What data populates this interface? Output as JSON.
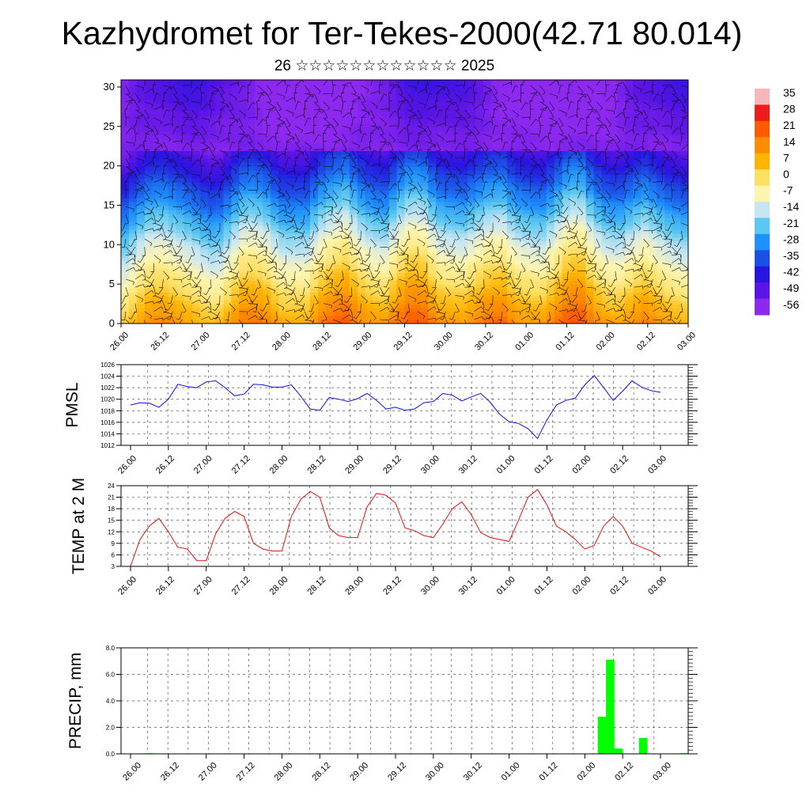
{
  "title": "Kazhydromet for Ter-Tekes-2000(42.71 80.014)",
  "subtitle": "26 ☆☆☆☆☆☆☆☆☆☆☆☆ 2025",
  "time_labels": [
    "26.00",
    "26.12",
    "27.00",
    "27.12",
    "28.00",
    "28.12",
    "29.00",
    "29.12",
    "30.00",
    "30.12",
    "01.00",
    "01.12",
    "02.00",
    "02.12",
    "03.00"
  ],
  "chart_data": [
    {
      "type": "heatmap",
      "title": "",
      "ylim": [
        0,
        30
      ],
      "yticks": [
        "0",
        "5",
        "10",
        "15",
        "20",
        "25",
        "30"
      ],
      "colorbar": {
        "labels": [
          "35",
          "28",
          "21",
          "14",
          "7",
          "0",
          "-7",
          "-14",
          "-21",
          "-28",
          "-35",
          "-42",
          "-49",
          "-56"
        ],
        "colors": [
          "#f4b8b8",
          "#ee1c1c",
          "#ff5a00",
          "#ff8c00",
          "#ffb400",
          "#ffe066",
          "#fff5b0",
          "#c8e6f2",
          "#5ac8f0",
          "#1e90ff",
          "#1c4fe6",
          "#2814e0",
          "#5a14e6",
          "#8c28f0"
        ],
        "range": [
          -60,
          38
        ]
      },
      "surface_temperature": [
        3,
        8,
        14,
        15,
        12,
        8,
        5,
        4,
        10,
        16,
        17,
        15,
        9,
        7,
        7,
        16,
        21,
        22,
        14,
        11,
        11,
        18,
        22,
        21,
        14,
        12,
        10,
        14,
        19,
        20,
        12,
        10,
        10,
        16,
        22,
        23,
        15,
        11,
        9,
        12,
        16,
        13,
        9,
        6
      ]
    },
    {
      "type": "line",
      "ylabel": "PMSL",
      "ylim": [
        1012,
        1026
      ],
      "yticks": [
        "1012",
        "1014",
        "1016",
        "1018",
        "1020",
        "1022",
        "1024",
        "1026"
      ],
      "color": "#1010e0",
      "series": [
        {
          "values": [
            1019,
            1019.4,
            1019.3,
            1018.6,
            1020,
            1022.6,
            1022.2,
            1022,
            1023,
            1023.2,
            1022,
            1020.6,
            1020.9,
            1022.6,
            1022.5,
            1022.1,
            1022.1,
            1022.5,
            1020.5,
            1018.3,
            1018.1,
            1020.3,
            1020,
            1019.6,
            1020.1,
            1021,
            1019.8,
            1018.3,
            1018.6,
            1018.1,
            1018.3,
            1019.4,
            1019.6,
            1021,
            1020.7,
            1019.7,
            1020.4,
            1021,
            1019.5,
            1017.4,
            1016.1,
            1015.8,
            1014.9,
            1013.2,
            1016.4,
            1019,
            1019.8,
            1020.2,
            1022.5,
            1024.1,
            1022,
            1019.8,
            1021.4,
            1023.2,
            1022.1,
            1021.5,
            1021.2
          ]
        }
      ]
    },
    {
      "type": "line",
      "ylabel": "TEMP at 2 M",
      "ylim": [
        3,
        24
      ],
      "yticks": [
        "3",
        "6",
        "9",
        "12",
        "15",
        "18",
        "21",
        "24"
      ],
      "color": "#e01010",
      "series": [
        {
          "values": [
            3,
            10,
            13.5,
            15.5,
            12,
            8,
            7.5,
            4.5,
            4.5,
            11.5,
            15.5,
            17.3,
            16,
            9,
            7.5,
            7,
            7,
            16,
            20.5,
            22.5,
            21,
            13,
            11,
            10.5,
            10.5,
            18.5,
            22,
            21.5,
            19.5,
            13,
            12.3,
            11,
            10.5,
            14,
            18,
            19.8,
            16.5,
            11.8,
            10.5,
            10,
            9.5,
            15,
            21,
            23,
            19,
            13.5,
            12,
            10,
            7.5,
            8.5,
            13.5,
            16,
            13.5,
            9,
            8,
            7,
            5.5
          ]
        }
      ]
    },
    {
      "type": "bar",
      "ylabel": "PRECIP, mm",
      "ylim": [
        0,
        8
      ],
      "yticks": [
        "0.0",
        "2.0",
        "4.0",
        "6.0",
        "8.0"
      ],
      "color": "#00ff00",
      "values": [
        0,
        0,
        0,
        0.05,
        0,
        0,
        0,
        0,
        0,
        0,
        0,
        0,
        0,
        0,
        0,
        0,
        0,
        0,
        0,
        0,
        0,
        0,
        0,
        0,
        0,
        0,
        0,
        0,
        0,
        0,
        0,
        0,
        0,
        0,
        0,
        0,
        0,
        0,
        0,
        0,
        0,
        0,
        0,
        0,
        0,
        0,
        0,
        0,
        0,
        0,
        0,
        0,
        0,
        0,
        0,
        0,
        0,
        0,
        2.8,
        7.1,
        0.4,
        0,
        0,
        1.2,
        0,
        0,
        0,
        0,
        0.05
      ]
    }
  ]
}
